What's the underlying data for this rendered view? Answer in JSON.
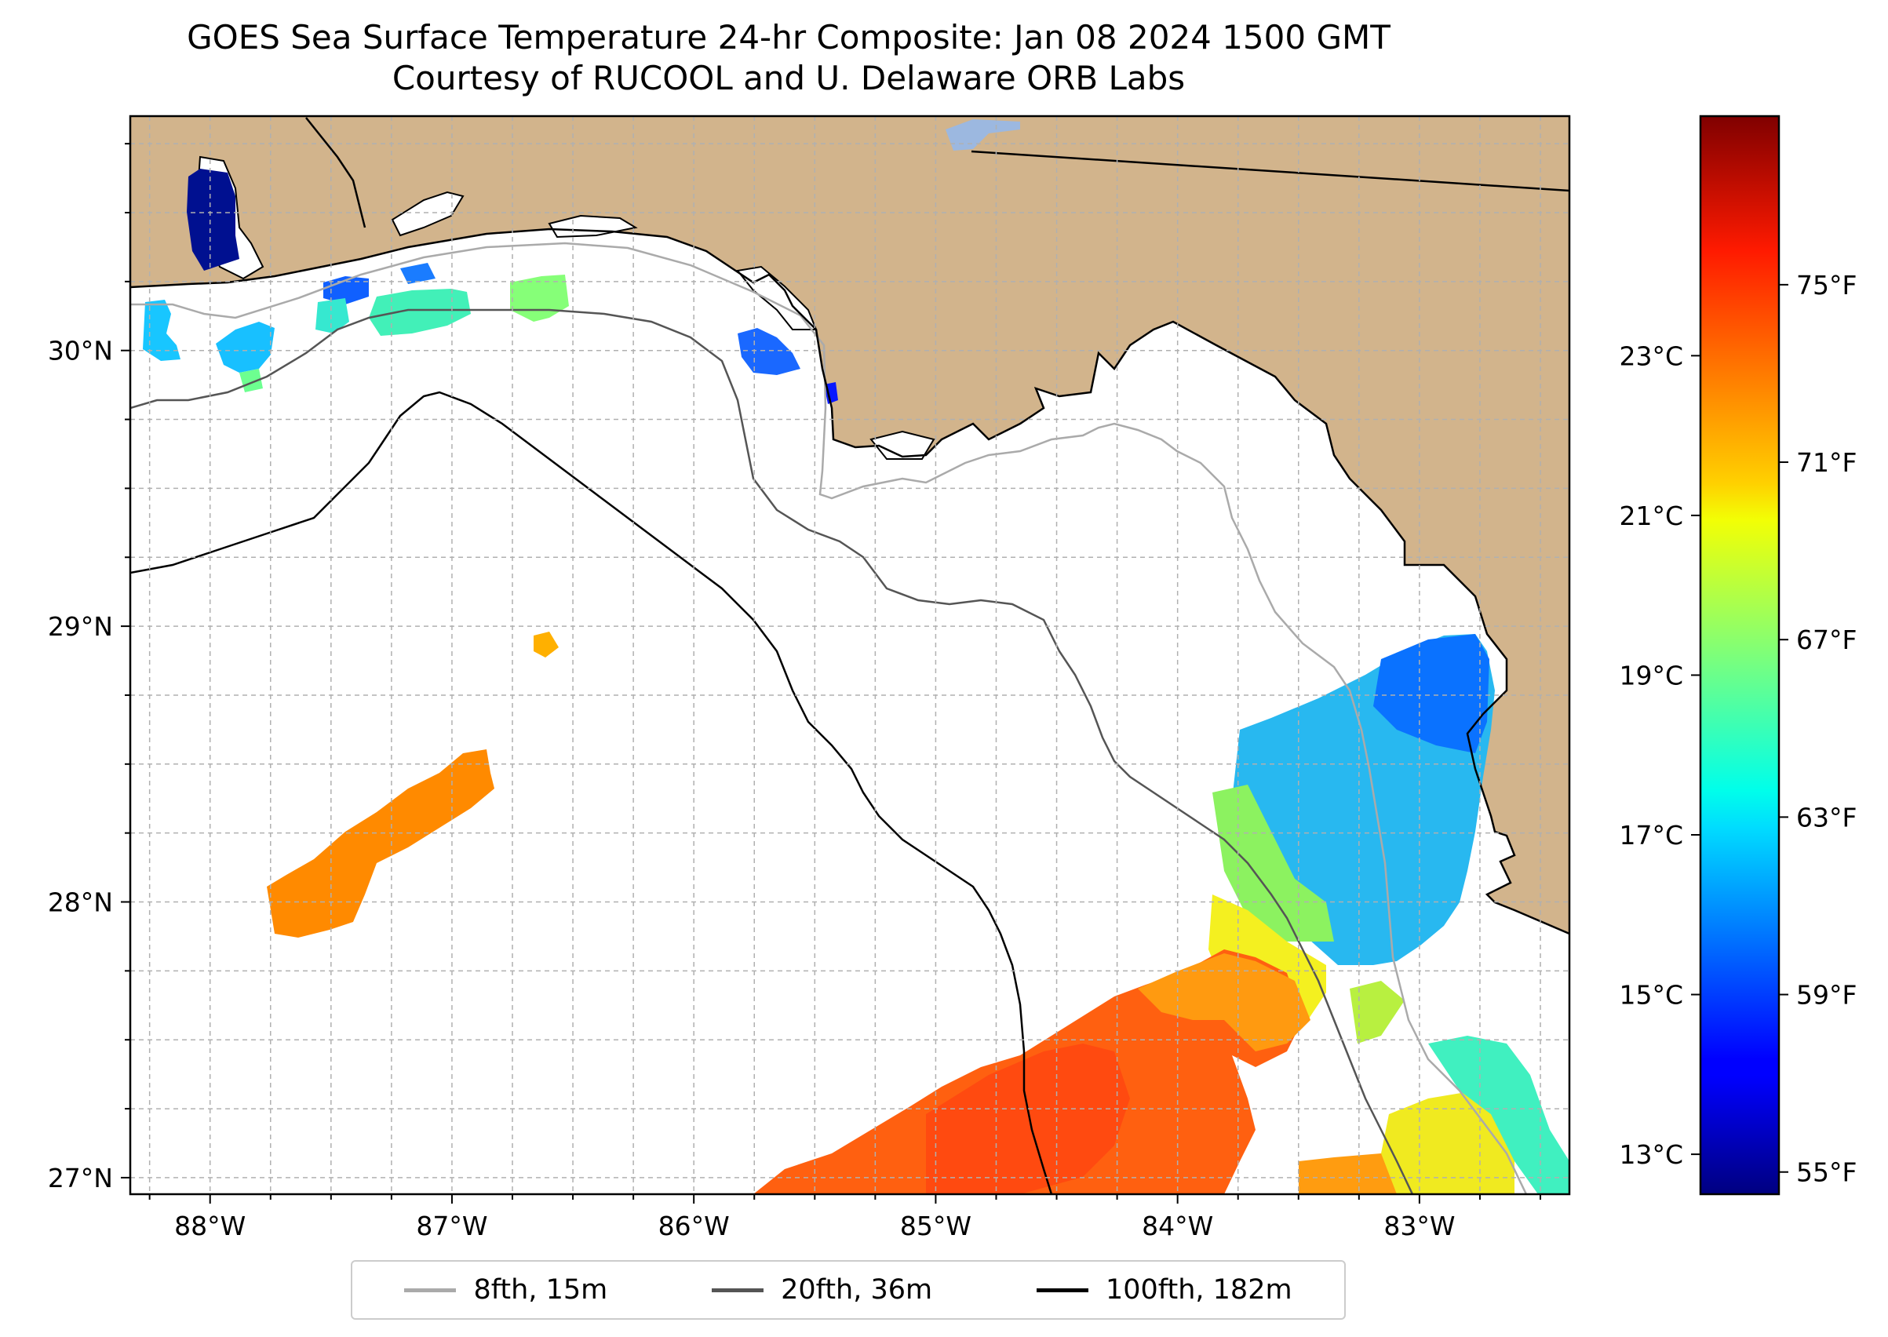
{
  "title": {
    "line1": "GOES Sea Surface Temperature 24-hr Composite: Jan 08 2024 1500 GMT",
    "line2": "Courtesy of RUCOOL and U. Delaware ORB Labs"
  },
  "map": {
    "extent": {
      "lon_min": -88.33,
      "lon_max": -82.38,
      "lat_min": 26.94,
      "lat_max": 30.85
    },
    "land_color": "#d2b48c",
    "water_color": "#ffffff",
    "grid_on": true,
    "lon_ticks": [
      {
        "value": -88,
        "label": "88°W"
      },
      {
        "value": -87,
        "label": "87°W"
      },
      {
        "value": -86,
        "label": "86°W"
      },
      {
        "value": -85,
        "label": "85°W"
      },
      {
        "value": -84,
        "label": "84°W"
      },
      {
        "value": -83,
        "label": "83°W"
      }
    ],
    "lat_ticks": [
      {
        "value": 27,
        "label": "27°N"
      },
      {
        "value": 28,
        "label": "28°N"
      },
      {
        "value": 29,
        "label": "29°N"
      },
      {
        "value": 30,
        "label": "30°N"
      }
    ]
  },
  "colorbar": {
    "colormap": "jet",
    "celsius_ticks": [
      {
        "value": 13,
        "label": "13°C"
      },
      {
        "value": 15,
        "label": "15°C"
      },
      {
        "value": 17,
        "label": "17°C"
      },
      {
        "value": 19,
        "label": "19°C"
      },
      {
        "value": 21,
        "label": "21°C"
      },
      {
        "value": 23,
        "label": "23°C"
      }
    ],
    "fahrenheit_ticks": [
      {
        "value": 55,
        "label": "55°F"
      },
      {
        "value": 59,
        "label": "59°F"
      },
      {
        "value": 63,
        "label": "63°F"
      },
      {
        "value": 67,
        "label": "67°F"
      },
      {
        "value": 71,
        "label": "71°F"
      },
      {
        "value": 75,
        "label": "75°F"
      }
    ]
  },
  "legend": {
    "items": [
      {
        "label": "8fth, 15m",
        "color": "#aaaaaa"
      },
      {
        "label": "20fth, 36m",
        "color": "#555555"
      },
      {
        "label": "100fth, 182m",
        "color": "#000000"
      }
    ]
  }
}
